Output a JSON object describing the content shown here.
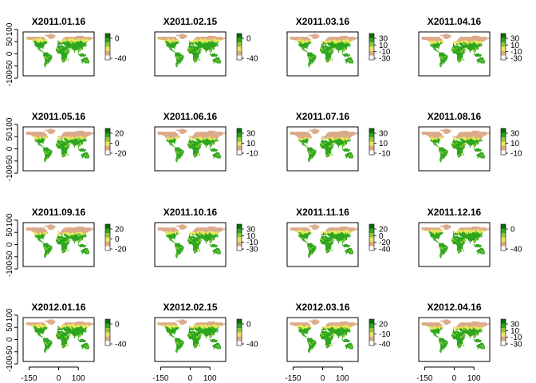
{
  "chart_data": {
    "type": "heatmap",
    "layout": {
      "rows": 4,
      "cols": 4
    },
    "xlim": [
      -180,
      180
    ],
    "ylim": [
      -90,
      90
    ],
    "x_ticks": [
      -150,
      0,
      100
    ],
    "y_ticks": [
      100,
      50,
      0,
      -50,
      -100
    ],
    "y_tick_labels": [
      "100",
      "50",
      "0",
      "-50",
      "-100"
    ],
    "x_tick_labels": [
      "-150",
      "0",
      "100"
    ],
    "x_axis_shown_on_row": 4,
    "y_axis_shown_on_col": 1,
    "colors": {
      "low": "#ffffff",
      "mid_low": "#dcaa8a",
      "mid": "#e6e65a",
      "mid_high": "#8cc83c",
      "high": "#2da61e",
      "top": "#0a6e0a"
    },
    "panels": [
      {
        "title": "X2011.01.16",
        "legend_ticks": [
          0,
          -40
        ],
        "legend_labels": [
          "0",
          "-40"
        ]
      },
      {
        "title": "X2011.02.15",
        "legend_ticks": [
          0,
          -40
        ],
        "legend_labels": [
          "0",
          "-40"
        ]
      },
      {
        "title": "X2011.03.16",
        "legend_ticks": [
          30,
          10,
          -10,
          -30
        ],
        "legend_labels": [
          "30",
          "10",
          "-10",
          "-30"
        ]
      },
      {
        "title": "X2011.04.16",
        "legend_ticks": [
          30,
          10,
          -10,
          -30
        ],
        "legend_labels": [
          "30",
          "10",
          "-10",
          "-30"
        ]
      },
      {
        "title": "X2011.05.16",
        "legend_ticks": [
          20,
          0,
          -20
        ],
        "legend_labels": [
          "20",
          "0",
          "-20"
        ]
      },
      {
        "title": "X2011.06.16",
        "legend_ticks": [
          30,
          10,
          -10
        ],
        "legend_labels": [
          "30",
          "10",
          "-10"
        ]
      },
      {
        "title": "X2011.07.16",
        "legend_ticks": [
          30,
          10,
          -10
        ],
        "legend_labels": [
          "30",
          "10",
          "-10"
        ]
      },
      {
        "title": "X2011.08.16",
        "legend_ticks": [
          30,
          10,
          -10
        ],
        "legend_labels": [
          "30",
          "10",
          "-10"
        ]
      },
      {
        "title": "X2011.09.16",
        "legend_ticks": [
          20,
          0,
          -20
        ],
        "legend_labels": [
          "20",
          "0",
          "-20"
        ]
      },
      {
        "title": "X2011.10.16",
        "legend_ticks": [
          30,
          10,
          -10,
          -30
        ],
        "legend_labels": [
          "30",
          "10",
          "-10",
          "-30"
        ]
      },
      {
        "title": "X2011.11.16",
        "legend_ticks": [
          20,
          0,
          -20,
          -40
        ],
        "legend_labels": [
          "20",
          "0",
          "-20",
          "-40"
        ]
      },
      {
        "title": "X2011.12.16",
        "legend_ticks": [
          0,
          -40
        ],
        "legend_labels": [
          "0",
          "-40"
        ]
      },
      {
        "title": "X2012.01.16",
        "legend_ticks": [
          0,
          -40
        ],
        "legend_labels": [
          "0",
          "-40"
        ]
      },
      {
        "title": "X2012.02.15",
        "legend_ticks": [
          0,
          -40
        ],
        "legend_labels": [
          "0",
          "-40"
        ]
      },
      {
        "title": "X2012.03.16",
        "legend_ticks": [
          20,
          -10,
          -40
        ],
        "legend_labels": [
          "20",
          "-10",
          "-40"
        ]
      },
      {
        "title": "X2012.04.16",
        "legend_ticks": [
          30,
          10,
          -10,
          -30
        ],
        "legend_labels": [
          "30",
          "10",
          "-10",
          "-30"
        ]
      }
    ]
  }
}
